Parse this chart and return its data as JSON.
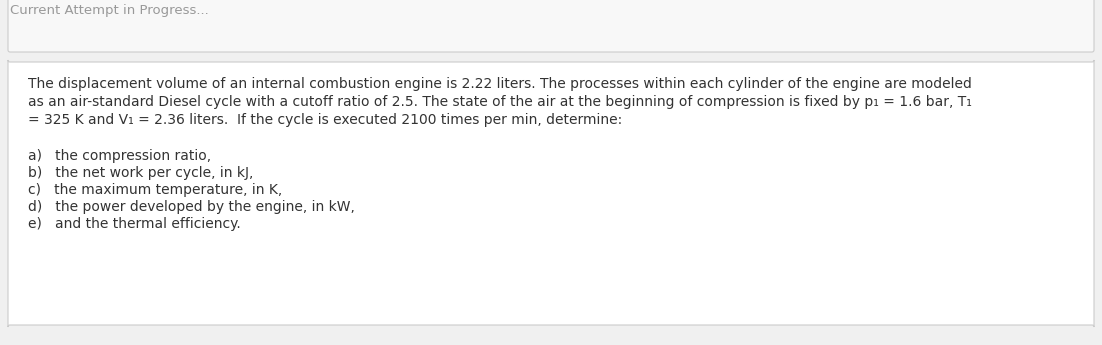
{
  "background_color": "#f0f0f0",
  "box_color": "#ffffff",
  "box_edge_color": "#cccccc",
  "header_text": "Current Attempt in Progress...",
  "header_color": "#999999",
  "header_fontsize": 9.5,
  "para_lines": [
    "The displacement volume of an internal combustion engine is 2.22 liters. The processes within each cylinder of the engine are modeled",
    "as an air-standard Diesel cycle with a cutoff ratio of 2.5. The state of the air at the beginning of compression is fixed by p₁ = 1.6 bar, T₁",
    "= 325 K and V₁ = 2.36 liters.  If the cycle is executed 2100 times per min, determine:"
  ],
  "list_items": [
    "a)   the compression ratio,",
    "b)   the net work per cycle, in kJ,",
    "c)   the maximum temperature, in K,",
    "d)   the power developed by the engine, in kW,",
    "e)   and the thermal efficiency."
  ],
  "text_color": "#333333",
  "font_size": 10.0,
  "bottom_box_color": "#f8f8f8",
  "bottom_box_edge_color": "#cccccc"
}
